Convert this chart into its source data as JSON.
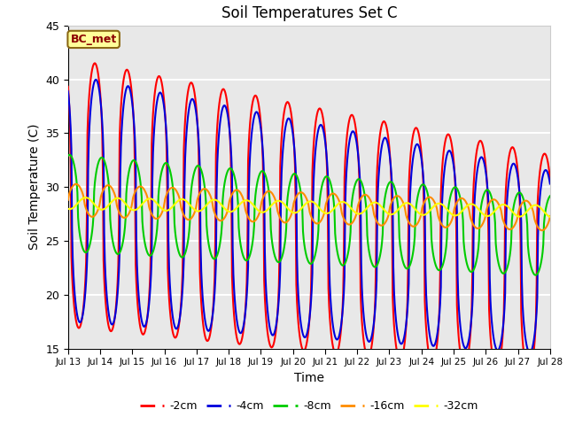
{
  "title": "Soil Temperatures Set C",
  "xlabel": "Time",
  "ylabel": "Soil Temperature (C)",
  "ylim": [
    15,
    45
  ],
  "x_tick_labels": [
    "Jul 13",
    "Jul 14",
    "Jul 15",
    "Jul 16",
    "Jul 17",
    "Jul 18",
    "Jul 19",
    "Jul 20",
    "Jul 21",
    "Jul 22",
    "Jul 23",
    "Jul 24",
    "Jul 25",
    "Jul 26",
    "Jul 27",
    "Jul 28"
  ],
  "series": {
    "-2cm": {
      "color": "#FF0000",
      "lw": 1.5
    },
    "-4cm": {
      "color": "#0000DD",
      "lw": 1.5
    },
    "-8cm": {
      "color": "#00CC00",
      "lw": 1.5
    },
    "-16cm": {
      "color": "#FF8C00",
      "lw": 1.5
    },
    "-32cm": {
      "color": "#FFFF00",
      "lw": 1.5
    }
  },
  "annotation_text": "BC_met",
  "annotation_bg": "#FFFF99",
  "annotation_border": "#8B6914",
  "bg_color": "#E8E8E8",
  "grid_color": "white",
  "figsize": [
    6.4,
    4.8
  ],
  "dpi": 100
}
